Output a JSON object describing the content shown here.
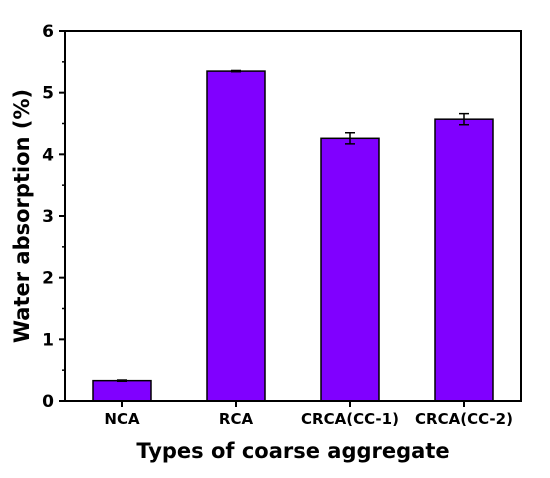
{
  "chart_data": {
    "type": "bar",
    "xlabel": "Types of coarse aggregate",
    "ylabel": "Water absorption (%)",
    "categories": [
      "NCA",
      "RCA",
      "CRCA(CC-1)",
      "CRCA(CC-2)"
    ],
    "values": [
      0.33,
      5.35,
      4.26,
      4.57
    ],
    "errors": [
      0.01,
      0.01,
      0.09,
      0.09
    ],
    "ylim": [
      0,
      6
    ],
    "yticks": [
      "0",
      "1",
      "2",
      "3",
      "4",
      "5",
      "6"
    ],
    "grid": false,
    "bar_color": "#8000ff",
    "bar_edge_color": "#000000"
  }
}
